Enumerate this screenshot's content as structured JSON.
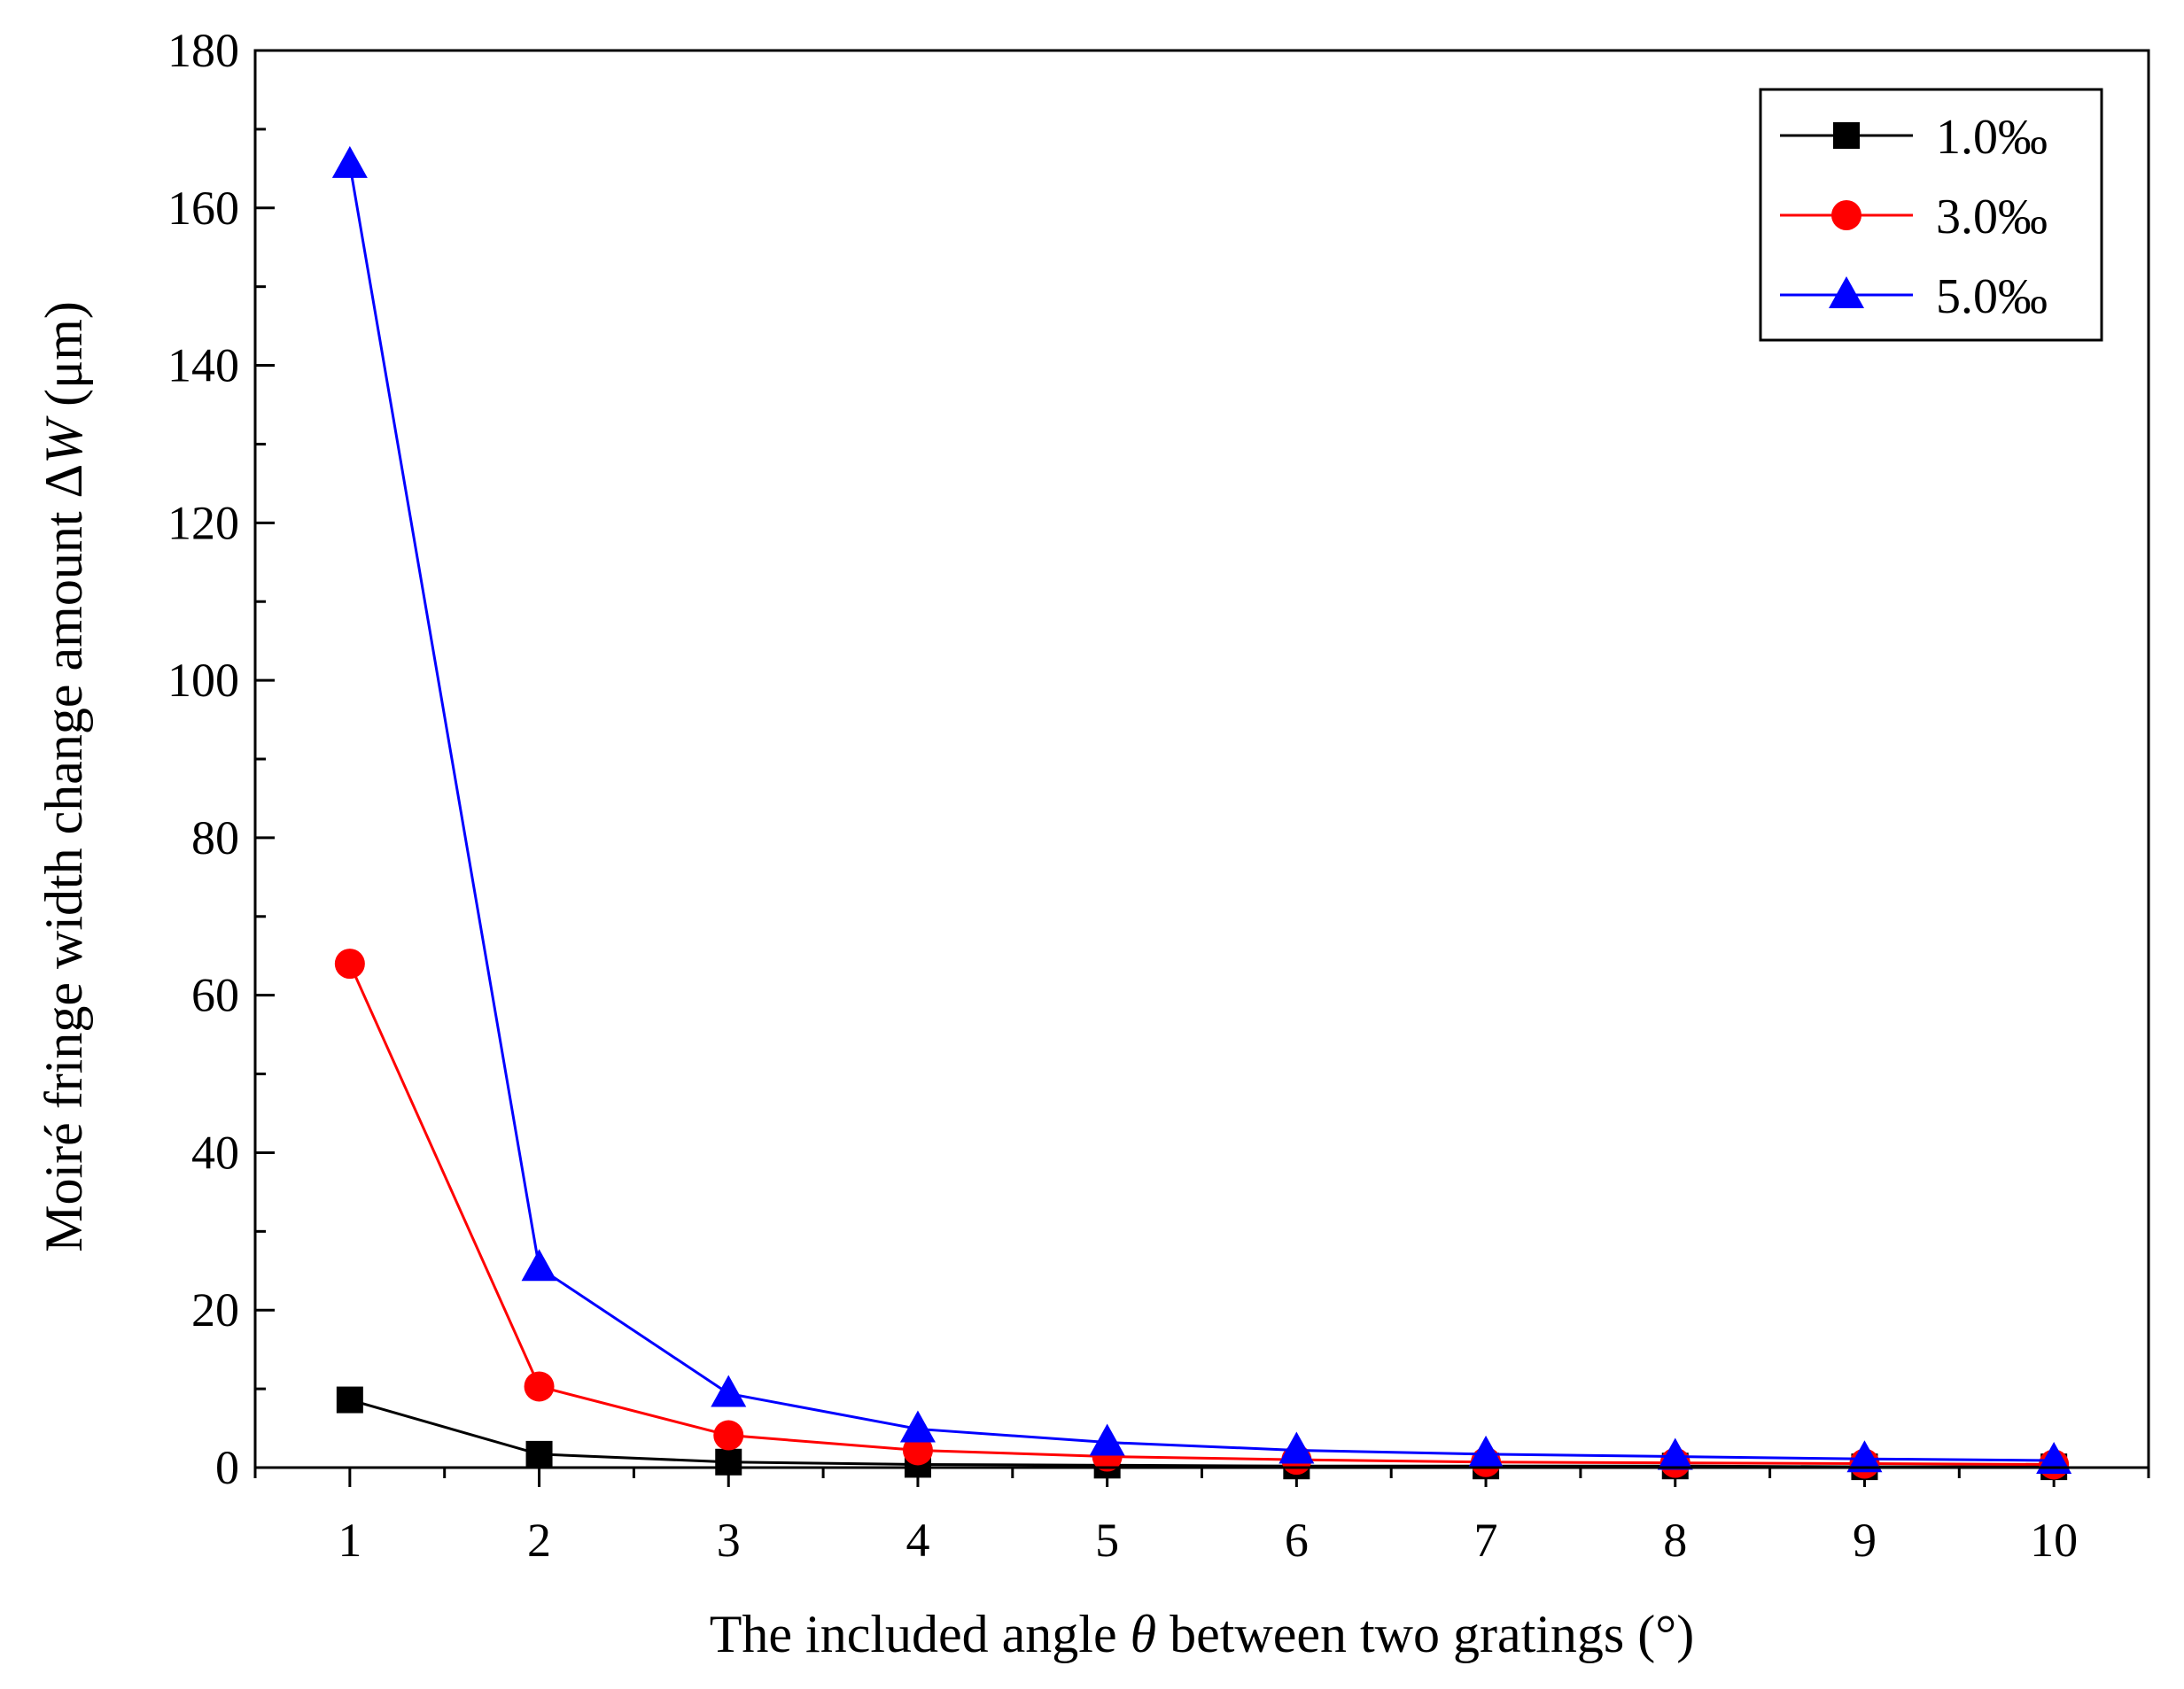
{
  "chart_data": {
    "type": "line",
    "title": "",
    "xlabel_parts": [
      "The included angle ",
      "θ",
      " between two gratings (°)"
    ],
    "ylabel_parts": [
      "Moiré fringe width change amount Δ",
      "W",
      " (μm)"
    ],
    "xlim": [
      0.5,
      10.5
    ],
    "ylim": [
      0,
      180
    ],
    "x": [
      1,
      2,
      3,
      4,
      5,
      6,
      7,
      8,
      9,
      10
    ],
    "xticks": [
      1,
      2,
      3,
      4,
      5,
      6,
      7,
      8,
      9,
      10
    ],
    "yticks": [
      0,
      20,
      40,
      60,
      80,
      100,
      120,
      140,
      160,
      180
    ],
    "legend_position": "top-right",
    "series": [
      {
        "name": "1.0‰",
        "color": "#000000",
        "marker": "square",
        "values": [
          8.6,
          1.7,
          0.7,
          0.4,
          0.3,
          0.2,
          0.2,
          0.2,
          0.1,
          0.1
        ]
      },
      {
        "name": "3.0‰",
        "color": "#ff0000",
        "marker": "circle",
        "values": [
          64.0,
          10.3,
          4.1,
          2.2,
          1.4,
          1.0,
          0.7,
          0.6,
          0.5,
          0.4
        ]
      },
      {
        "name": "5.0‰",
        "color": "#0000ff",
        "marker": "triangle",
        "values": [
          165.5,
          25.4,
          9.4,
          4.9,
          3.2,
          2.2,
          1.7,
          1.4,
          1.1,
          0.9
        ]
      }
    ]
  }
}
